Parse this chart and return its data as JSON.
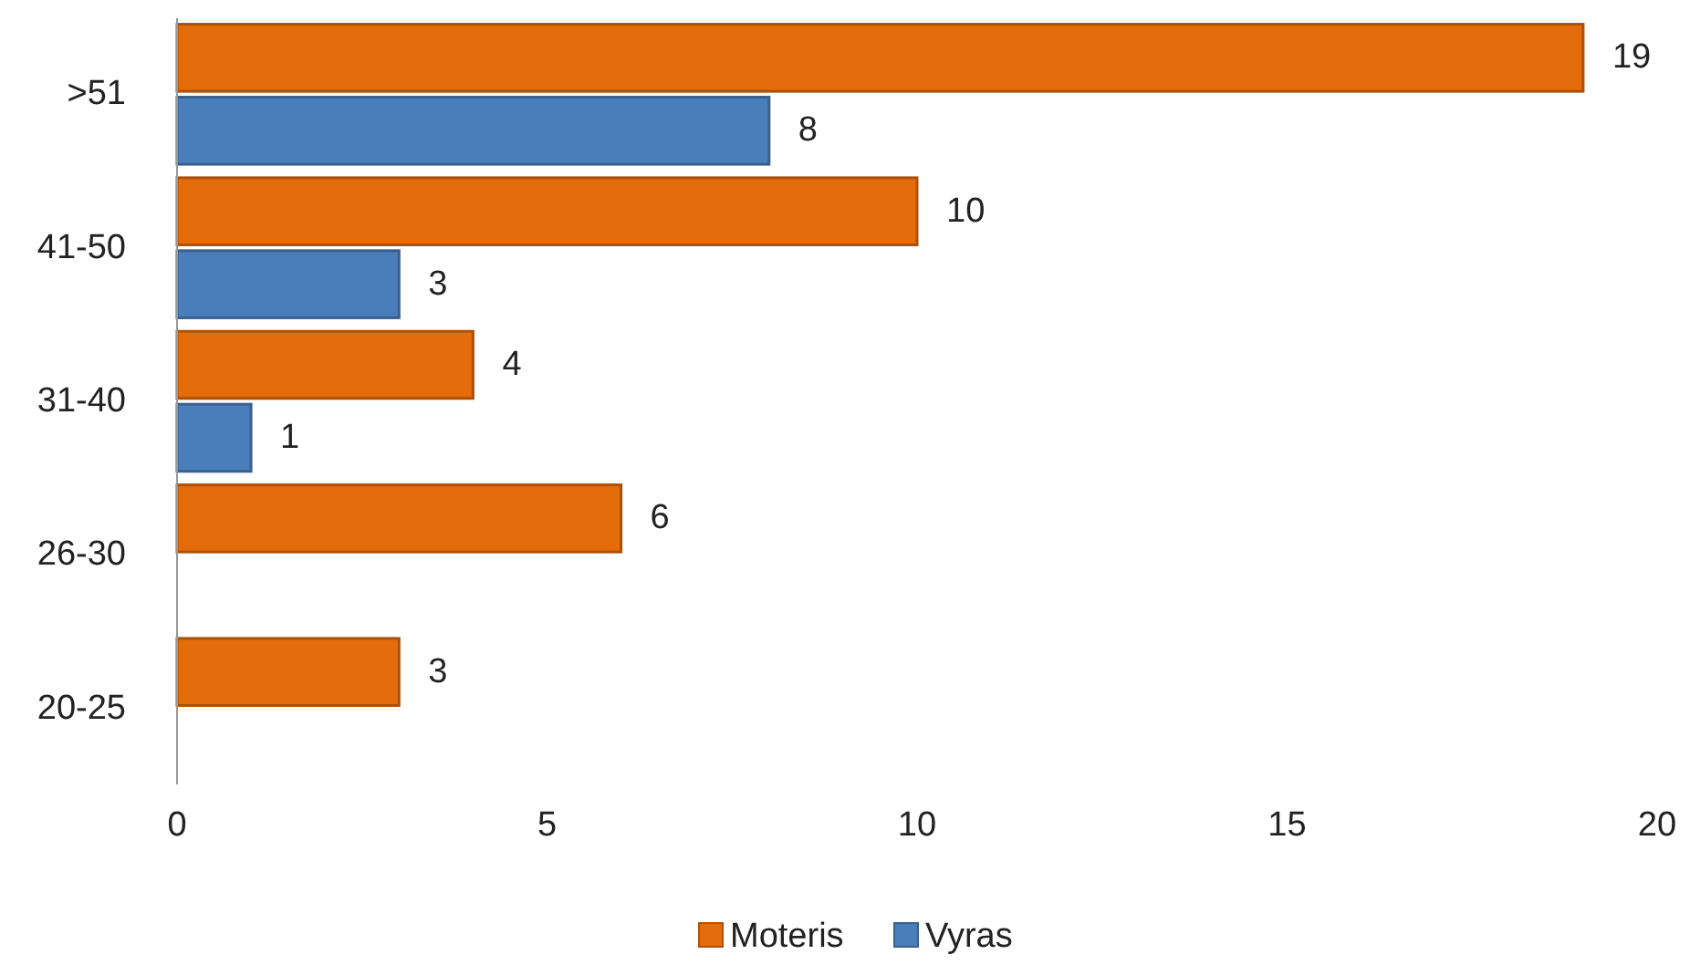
{
  "chart_data": {
    "type": "bar",
    "orientation": "horizontal",
    "categories": [
      ">51",
      "41-50",
      "31-40",
      "26-30",
      "20-25"
    ],
    "series": [
      {
        "name": "Moteris",
        "color": "#e46c0a",
        "values": [
          19,
          10,
          4,
          6,
          3
        ]
      },
      {
        "name": "Vyras",
        "color": "#4a7ebb",
        "values": [
          8,
          3,
          1,
          null,
          null
        ]
      }
    ],
    "xlim": [
      0,
      20
    ],
    "xticks": [
      0,
      5,
      10,
      15,
      20
    ],
    "grid": false,
    "legend": "bottom",
    "data_labels": true
  }
}
